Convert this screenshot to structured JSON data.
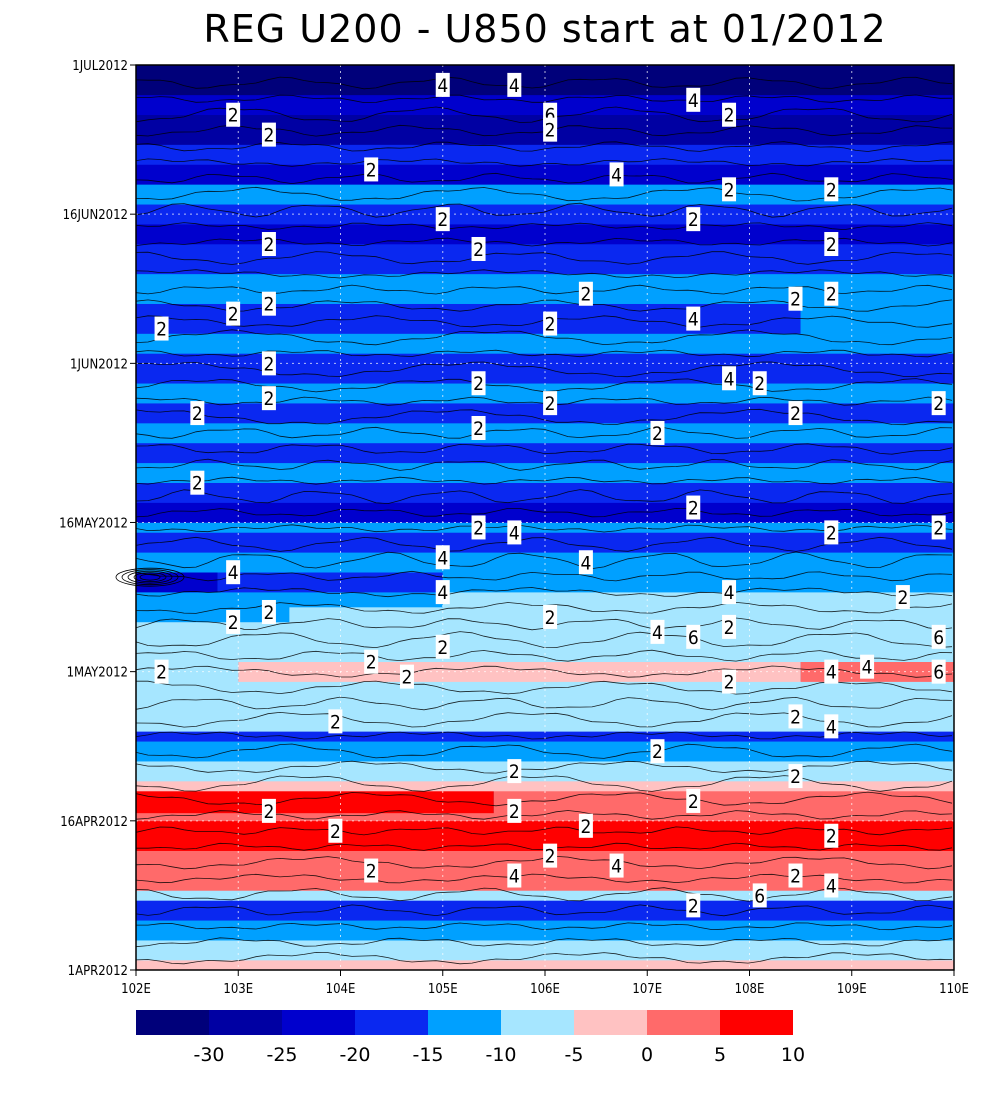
{
  "chart_data": {
    "type": "heatmap",
    "title": "REG U200 - U850 start at 01/2012",
    "xlabel": "",
    "ylabel": "",
    "x_ticks": [
      "102E",
      "103E",
      "104E",
      "105E",
      "106E",
      "107E",
      "108E",
      "109E",
      "110E"
    ],
    "y_ticks": [
      "1APR2012",
      "16APR2012",
      "1MAY2012",
      "16MAY2012",
      "1JUN2012",
      "16JUN2012",
      "1JUL2012"
    ],
    "xlim": [
      102,
      110
    ],
    "ylim_days_after_1APR2012": [
      0,
      91
    ],
    "grid": true,
    "colorbar": {
      "placement": "bottom",
      "labels": [
        "-30",
        "-25",
        "-20",
        "-15",
        "-10",
        "-5",
        "0",
        "5",
        "10"
      ],
      "colors": [
        "#00007a",
        "#0000a3",
        "#0000cd",
        "#0a28f0",
        "#00a0ff",
        "#a6e6ff",
        "#ffc2c2",
        "#ff6a6a",
        "#ff0000"
      ]
    },
    "bands": [
      {
        "from": 0,
        "to": 1,
        "segments": [
          {
            "x0": 102,
            "x1": 110,
            "c": 6
          }
        ]
      },
      {
        "from": 1,
        "to": 3,
        "segments": [
          {
            "x0": 102,
            "x1": 110,
            "c": 5
          }
        ]
      },
      {
        "from": 3,
        "to": 5,
        "segments": [
          {
            "x0": 102,
            "x1": 110,
            "c": 4
          }
        ]
      },
      {
        "from": 5,
        "to": 7,
        "segments": [
          {
            "x0": 102,
            "x1": 110,
            "c": 3
          }
        ]
      },
      {
        "from": 7,
        "to": 8,
        "segments": [
          {
            "x0": 102,
            "x1": 110,
            "c": 5
          }
        ]
      },
      {
        "from": 8,
        "to": 12,
        "segments": [
          {
            "x0": 102,
            "x1": 110,
            "c": 7
          }
        ]
      },
      {
        "from": 12,
        "to": 15,
        "segments": [
          {
            "x0": 102,
            "x1": 110,
            "c": 8
          }
        ]
      },
      {
        "from": 15,
        "to": 15.8,
        "segments": [
          {
            "x0": 102,
            "x1": 110,
            "c": 7
          }
        ]
      },
      {
        "from": 15.8,
        "to": 18,
        "segments": [
          {
            "x0": 102,
            "x1": 105.5,
            "c": 8
          },
          {
            "x0": 105.5,
            "x1": 110,
            "c": 7
          }
        ]
      },
      {
        "from": 18,
        "to": 19,
        "segments": [
          {
            "x0": 102,
            "x1": 110,
            "c": 6
          }
        ]
      },
      {
        "from": 19,
        "to": 21,
        "segments": [
          {
            "x0": 102,
            "x1": 110,
            "c": 5
          }
        ]
      },
      {
        "from": 21,
        "to": 23,
        "segments": [
          {
            "x0": 102,
            "x1": 110,
            "c": 4
          }
        ]
      },
      {
        "from": 23,
        "to": 24,
        "segments": [
          {
            "x0": 102,
            "x1": 110,
            "c": 3
          }
        ]
      },
      {
        "from": 24,
        "to": 27,
        "segments": [
          {
            "x0": 102,
            "x1": 110,
            "c": 5
          }
        ]
      },
      {
        "from": 27,
        "to": 29,
        "segments": [
          {
            "x0": 102,
            "x1": 110,
            "c": 5
          }
        ]
      },
      {
        "from": 29,
        "to": 31,
        "segments": [
          {
            "x0": 102,
            "x1": 103,
            "c": 5
          },
          {
            "x0": 103,
            "x1": 108.5,
            "c": 6
          },
          {
            "x0": 108.5,
            "x1": 110,
            "c": 7
          }
        ]
      },
      {
        "from": 31,
        "to": 35,
        "segments": [
          {
            "x0": 102,
            "x1": 110,
            "c": 5
          }
        ]
      },
      {
        "from": 35,
        "to": 36.5,
        "segments": [
          {
            "x0": 102,
            "x1": 103.5,
            "c": 4
          },
          {
            "x0": 103.5,
            "x1": 110,
            "c": 5
          }
        ]
      },
      {
        "from": 36.5,
        "to": 38,
        "segments": [
          {
            "x0": 102,
            "x1": 105,
            "c": 4
          },
          {
            "x0": 105,
            "x1": 110,
            "c": 5
          }
        ]
      },
      {
        "from": 38,
        "to": 40,
        "segments": [
          {
            "x0": 102,
            "x1": 102.8,
            "c": 2
          },
          {
            "x0": 102.8,
            "x1": 105,
            "c": 3
          },
          {
            "x0": 105,
            "x1": 110,
            "c": 4
          }
        ]
      },
      {
        "from": 40,
        "to": 42,
        "segments": [
          {
            "x0": 102,
            "x1": 110,
            "c": 4
          }
        ]
      },
      {
        "from": 42,
        "to": 44,
        "segments": [
          {
            "x0": 102,
            "x1": 110,
            "c": 3
          }
        ]
      },
      {
        "from": 44,
        "to": 45,
        "segments": [
          {
            "x0": 102,
            "x1": 110,
            "c": 4
          }
        ]
      },
      {
        "from": 45,
        "to": 47,
        "segments": [
          {
            "x0": 102,
            "x1": 110,
            "c": 2
          }
        ]
      },
      {
        "from": 47,
        "to": 49,
        "segments": [
          {
            "x0": 102,
            "x1": 110,
            "c": 3
          }
        ]
      },
      {
        "from": 49,
        "to": 51,
        "segments": [
          {
            "x0": 102,
            "x1": 110,
            "c": 4
          }
        ]
      },
      {
        "from": 51,
        "to": 53,
        "segments": [
          {
            "x0": 102,
            "x1": 110,
            "c": 3
          }
        ]
      },
      {
        "from": 53,
        "to": 55,
        "segments": [
          {
            "x0": 102,
            "x1": 110,
            "c": 4
          }
        ]
      },
      {
        "from": 55,
        "to": 57,
        "segments": [
          {
            "x0": 102,
            "x1": 110,
            "c": 3
          }
        ]
      },
      {
        "from": 57,
        "to": 59,
        "segments": [
          {
            "x0": 102,
            "x1": 110,
            "c": 4
          }
        ]
      },
      {
        "from": 59,
        "to": 62,
        "segments": [
          {
            "x0": 102,
            "x1": 110,
            "c": 3
          }
        ]
      },
      {
        "from": 62,
        "to": 64,
        "segments": [
          {
            "x0": 102,
            "x1": 110,
            "c": 4
          }
        ]
      },
      {
        "from": 64,
        "to": 67,
        "segments": [
          {
            "x0": 102,
            "x1": 108.5,
            "c": 3
          },
          {
            "x0": 108.5,
            "x1": 110,
            "c": 4
          }
        ]
      },
      {
        "from": 67,
        "to": 70,
        "segments": [
          {
            "x0": 102,
            "x1": 110,
            "c": 4
          }
        ]
      },
      {
        "from": 70,
        "to": 73,
        "segments": [
          {
            "x0": 102,
            "x1": 110,
            "c": 3
          }
        ]
      },
      {
        "from": 73,
        "to": 75,
        "segments": [
          {
            "x0": 102,
            "x1": 110,
            "c": 2
          }
        ]
      },
      {
        "from": 75,
        "to": 77,
        "segments": [
          {
            "x0": 102,
            "x1": 110,
            "c": 3
          }
        ]
      },
      {
        "from": 77,
        "to": 79,
        "segments": [
          {
            "x0": 102,
            "x1": 110,
            "c": 4
          }
        ]
      },
      {
        "from": 79,
        "to": 81,
        "segments": [
          {
            "x0": 102,
            "x1": 110,
            "c": 2
          }
        ]
      },
      {
        "from": 81,
        "to": 83,
        "segments": [
          {
            "x0": 102,
            "x1": 110,
            "c": 3
          }
        ]
      },
      {
        "from": 83,
        "to": 86,
        "segments": [
          {
            "x0": 102,
            "x1": 110,
            "c": 1
          }
        ]
      },
      {
        "from": 86,
        "to": 88,
        "segments": [
          {
            "x0": 102,
            "x1": 110,
            "c": 2
          }
        ]
      },
      {
        "from": 88,
        "to": 91,
        "segments": [
          {
            "x0": 102,
            "x1": 110,
            "c": 0
          }
        ]
      }
    ],
    "contour_labels": [
      {
        "x": 105.0,
        "day": 89,
        "v": "4"
      },
      {
        "x": 105.7,
        "day": 89,
        "v": "4"
      },
      {
        "x": 102.95,
        "day": 86,
        "v": "2"
      },
      {
        "x": 103.3,
        "day": 84,
        "v": "2"
      },
      {
        "x": 106.05,
        "day": 86,
        "v": "6"
      },
      {
        "x": 106.05,
        "day": 84.5,
        "v": "2"
      },
      {
        "x": 107.45,
        "day": 87.5,
        "v": "4"
      },
      {
        "x": 107.8,
        "day": 86,
        "v": "2"
      },
      {
        "x": 104.3,
        "day": 80.5,
        "v": "2"
      },
      {
        "x": 106.7,
        "day": 80,
        "v": "4"
      },
      {
        "x": 107.8,
        "day": 78.5,
        "v": "2"
      },
      {
        "x": 108.8,
        "day": 78.5,
        "v": "2"
      },
      {
        "x": 105.0,
        "day": 75.5,
        "v": "2"
      },
      {
        "x": 107.45,
        "day": 75.5,
        "v": "2"
      },
      {
        "x": 103.3,
        "day": 73,
        "v": "2"
      },
      {
        "x": 105.35,
        "day": 72.5,
        "v": "2"
      },
      {
        "x": 108.8,
        "day": 73,
        "v": "2"
      },
      {
        "x": 106.4,
        "day": 68,
        "v": "2"
      },
      {
        "x": 108.8,
        "day": 68,
        "v": "2"
      },
      {
        "x": 108.45,
        "day": 67.5,
        "v": "2"
      },
      {
        "x": 103.3,
        "day": 67,
        "v": "2"
      },
      {
        "x": 102.95,
        "day": 66,
        "v": "2"
      },
      {
        "x": 102.25,
        "day": 64.5,
        "v": "2"
      },
      {
        "x": 106.05,
        "day": 65,
        "v": "2"
      },
      {
        "x": 107.45,
        "day": 65.5,
        "v": "4"
      },
      {
        "x": 103.3,
        "day": 61,
        "v": "2"
      },
      {
        "x": 107.8,
        "day": 59.5,
        "v": "4"
      },
      {
        "x": 108.1,
        "day": 59,
        "v": "2"
      },
      {
        "x": 105.35,
        "day": 59,
        "v": "2"
      },
      {
        "x": 103.3,
        "day": 57.5,
        "v": "2"
      },
      {
        "x": 102.6,
        "day": 56,
        "v": "2"
      },
      {
        "x": 106.05,
        "day": 57,
        "v": "2"
      },
      {
        "x": 108.45,
        "day": 56,
        "v": "2"
      },
      {
        "x": 109.85,
        "day": 57,
        "v": "2"
      },
      {
        "x": 105.35,
        "day": 54.5,
        "v": "2"
      },
      {
        "x": 107.1,
        "day": 54,
        "v": "2"
      },
      {
        "x": 102.6,
        "day": 49,
        "v": "2"
      },
      {
        "x": 107.45,
        "day": 46.5,
        "v": "2"
      },
      {
        "x": 105.35,
        "day": 44.5,
        "v": "2"
      },
      {
        "x": 105.7,
        "day": 44,
        "v": "4"
      },
      {
        "x": 108.8,
        "day": 44,
        "v": "2"
      },
      {
        "x": 109.85,
        "day": 44.5,
        "v": "2"
      },
      {
        "x": 105.0,
        "day": 41.5,
        "v": "4"
      },
      {
        "x": 106.4,
        "day": 41,
        "v": "4"
      },
      {
        "x": 102.95,
        "day": 40,
        "v": "4"
      },
      {
        "x": 105.0,
        "day": 38,
        "v": "4"
      },
      {
        "x": 107.8,
        "day": 38,
        "v": "4"
      },
      {
        "x": 109.5,
        "day": 37.5,
        "v": "2"
      },
      {
        "x": 103.3,
        "day": 36,
        "v": "2"
      },
      {
        "x": 102.95,
        "day": 35,
        "v": "2"
      },
      {
        "x": 106.05,
        "day": 35.5,
        "v": "2"
      },
      {
        "x": 107.1,
        "day": 34,
        "v": "4"
      },
      {
        "x": 107.45,
        "day": 33.5,
        "v": "6"
      },
      {
        "x": 107.8,
        "day": 34.5,
        "v": "2"
      },
      {
        "x": 109.85,
        "day": 33.5,
        "v": "6"
      },
      {
        "x": 105.0,
        "day": 32.5,
        "v": "2"
      },
      {
        "x": 104.3,
        "day": 31,
        "v": "2"
      },
      {
        "x": 102.25,
        "day": 30,
        "v": "2"
      },
      {
        "x": 104.65,
        "day": 29.5,
        "v": "2"
      },
      {
        "x": 108.8,
        "day": 30,
        "v": "4"
      },
      {
        "x": 109.15,
        "day": 30.5,
        "v": "4"
      },
      {
        "x": 109.85,
        "day": 30,
        "v": "6"
      },
      {
        "x": 107.8,
        "day": 29,
        "v": "2"
      },
      {
        "x": 103.95,
        "day": 25,
        "v": "2"
      },
      {
        "x": 108.45,
        "day": 25.5,
        "v": "2"
      },
      {
        "x": 108.8,
        "day": 24.5,
        "v": "4"
      },
      {
        "x": 107.1,
        "day": 22,
        "v": "2"
      },
      {
        "x": 105.7,
        "day": 20,
        "v": "2"
      },
      {
        "x": 108.45,
        "day": 19.5,
        "v": "2"
      },
      {
        "x": 103.3,
        "day": 16,
        "v": "2"
      },
      {
        "x": 105.7,
        "day": 16,
        "v": "2"
      },
      {
        "x": 107.45,
        "day": 17,
        "v": "2"
      },
      {
        "x": 103.95,
        "day": 14,
        "v": "2"
      },
      {
        "x": 106.4,
        "day": 14.5,
        "v": "2"
      },
      {
        "x": 108.8,
        "day": 13.5,
        "v": "2"
      },
      {
        "x": 106.05,
        "day": 11.5,
        "v": "2"
      },
      {
        "x": 106.7,
        "day": 10.5,
        "v": "4"
      },
      {
        "x": 104.3,
        "day": 10,
        "v": "2"
      },
      {
        "x": 105.7,
        "day": 9.5,
        "v": "4"
      },
      {
        "x": 108.45,
        "day": 9.5,
        "v": "2"
      },
      {
        "x": 108.8,
        "day": 8.5,
        "v": "4"
      },
      {
        "x": 108.1,
        "day": 7.5,
        "v": "6"
      },
      {
        "x": 107.45,
        "day": 6.5,
        "v": "2"
      }
    ]
  }
}
